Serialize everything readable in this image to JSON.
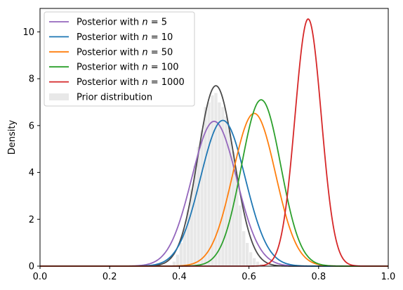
{
  "chart_data": {
    "type": "line",
    "title": "",
    "xlabel": "",
    "ylabel": "Density",
    "xlim": [
      0.0,
      1.0
    ],
    "ylim": [
      0,
      11
    ],
    "grid": false,
    "legend_position": "top-left",
    "x_ticks": [
      "0.0",
      "0.2",
      "0.4",
      "0.6",
      "0.8",
      "1.0"
    ],
    "x_tick_values": [
      0.0,
      0.2,
      0.4,
      0.6,
      0.8,
      1.0
    ],
    "y_ticks": [
      "0",
      "2",
      "4",
      "6",
      "8",
      "10"
    ],
    "y_tick_values": [
      0,
      2,
      4,
      6,
      8,
      10
    ],
    "series": [
      {
        "name": "Posterior with n = 5",
        "name_prefix": "Posterior with ",
        "name_var": "n",
        "name_value": " = 5",
        "color": "#9467bd",
        "mean": 0.5,
        "peak": 6.18
      },
      {
        "name": "Posterior with n = 10",
        "name_prefix": "Posterior with ",
        "name_var": "n",
        "name_value": " = 10",
        "color": "#1f77b4",
        "mean": 0.525,
        "peak": 6.22
      },
      {
        "name": "Posterior with n = 50",
        "name_prefix": "Posterior with ",
        "name_var": "n",
        "name_value": " = 50",
        "color": "#ff7f0e",
        "mean": 0.615,
        "peak": 6.52
      },
      {
        "name": "Posterior with n = 100",
        "name_prefix": "Posterior with ",
        "name_var": "n",
        "name_value": " = 100",
        "color": "#2ca02c",
        "mean": 0.635,
        "peak": 7.1
      },
      {
        "name": "Posterior with n = 1000",
        "name_prefix": "Posterior with ",
        "name_var": "n",
        "name_value": " = 1000",
        "color": "#d62728",
        "mean": 0.77,
        "peak": 10.55
      }
    ],
    "prior": {
      "name": "Prior distribution",
      "histogram_color": "#e8e8e8",
      "kde_color": "#4a4a4a",
      "mean": 0.505,
      "peak": 7.7,
      "bin_width": 0.01,
      "bins_x": [
        0.38,
        0.39,
        0.4,
        0.41,
        0.42,
        0.43,
        0.44,
        0.45,
        0.46,
        0.47,
        0.48,
        0.49,
        0.5,
        0.51,
        0.52,
        0.53,
        0.54,
        0.55,
        0.56,
        0.57,
        0.58,
        0.59,
        0.6,
        0.61,
        0.62,
        0.63
      ],
      "bins_h": [
        0.2,
        0.5,
        1.0,
        1.6,
        2.4,
        3.3,
        4.3,
        5.1,
        5.8,
        6.8,
        7.0,
        7.3,
        7.4,
        7.0,
        6.8,
        6.4,
        5.8,
        4.9,
        3.8,
        2.6,
        1.5,
        1.0,
        0.6,
        0.35,
        0.2,
        0.1
      ]
    }
  }
}
